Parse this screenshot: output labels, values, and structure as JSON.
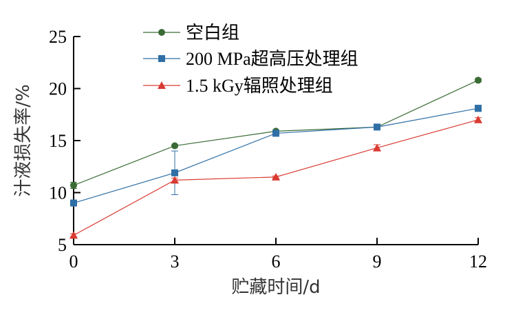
{
  "chart_data": {
    "type": "line",
    "xlabel": "贮藏时间/d",
    "ylabel": "汁液损失率/%",
    "x": [
      0,
      3,
      6,
      9,
      12
    ],
    "xlim": [
      0,
      12
    ],
    "ylim": [
      5,
      25
    ],
    "xticks": [
      "0",
      "3",
      "6",
      "9",
      "12"
    ],
    "yticks": [
      "5",
      "10",
      "15",
      "20",
      "25"
    ],
    "legend_position": "top-center",
    "grid": false,
    "series": [
      {
        "name": "空白组",
        "values": [
          10.7,
          14.5,
          15.9,
          16.3,
          20.8
        ],
        "errors": [
          0.3,
          0.1,
          0.1,
          0.1,
          0.15
        ],
        "color": "#3a6b35",
        "marker": "circle"
      },
      {
        "name": "200 MPa超高压处理组",
        "values": [
          9.0,
          11.9,
          15.7,
          16.3,
          18.1
        ],
        "errors": [
          0.15,
          2.1,
          0.2,
          0.15,
          0.3
        ],
        "color": "#2f6fa6",
        "marker": "square"
      },
      {
        "name": "1.5 kGy辐照处理组",
        "values": [
          5.9,
          11.2,
          11.5,
          14.3,
          17.0
        ],
        "errors": [
          0.15,
          0.2,
          0.1,
          0.3,
          0.2
        ],
        "color": "#d93a32",
        "marker": "triangle"
      }
    ]
  }
}
